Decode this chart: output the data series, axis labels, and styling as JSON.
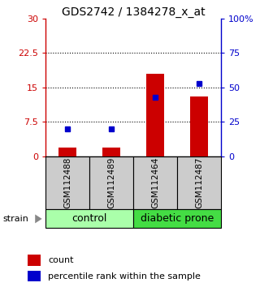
{
  "title": "GDS2742 / 1384278_x_at",
  "samples": [
    "GSM112488",
    "GSM112489",
    "GSM112464",
    "GSM112487"
  ],
  "red_values": [
    2.0,
    2.0,
    18.0,
    13.0
  ],
  "blue_values": [
    20.0,
    20.0,
    43.0,
    53.0
  ],
  "groups": [
    {
      "label": "control",
      "indices": [
        0,
        1
      ],
      "color": "#aaffaa"
    },
    {
      "label": "diabetic prone",
      "indices": [
        2,
        3
      ],
      "color": "#44dd44"
    }
  ],
  "left_ylim": [
    0,
    30
  ],
  "right_ylim": [
    0,
    100
  ],
  "left_ticks": [
    0,
    7.5,
    15,
    22.5,
    30
  ],
  "left_tick_labels": [
    "0",
    "7.5",
    "15",
    "22.5",
    "30"
  ],
  "right_ticks": [
    0,
    25,
    50,
    75,
    100
  ],
  "right_tick_labels": [
    "0",
    "25",
    "50",
    "75",
    "100%"
  ],
  "grid_lines": [
    7.5,
    15,
    22.5
  ],
  "left_axis_color": "#cc0000",
  "right_axis_color": "#0000cc",
  "bar_color": "#cc0000",
  "dot_color": "#0000cc",
  "bar_width": 0.4,
  "sample_box_color": "#cccccc",
  "strain_label": "strain",
  "legend_count": "count",
  "legend_percentile": "percentile rank within the sample",
  "title_fontsize": 10,
  "tick_fontsize": 8,
  "label_fontsize": 8,
  "sample_fontsize": 7.5,
  "group_fontsize": 9
}
